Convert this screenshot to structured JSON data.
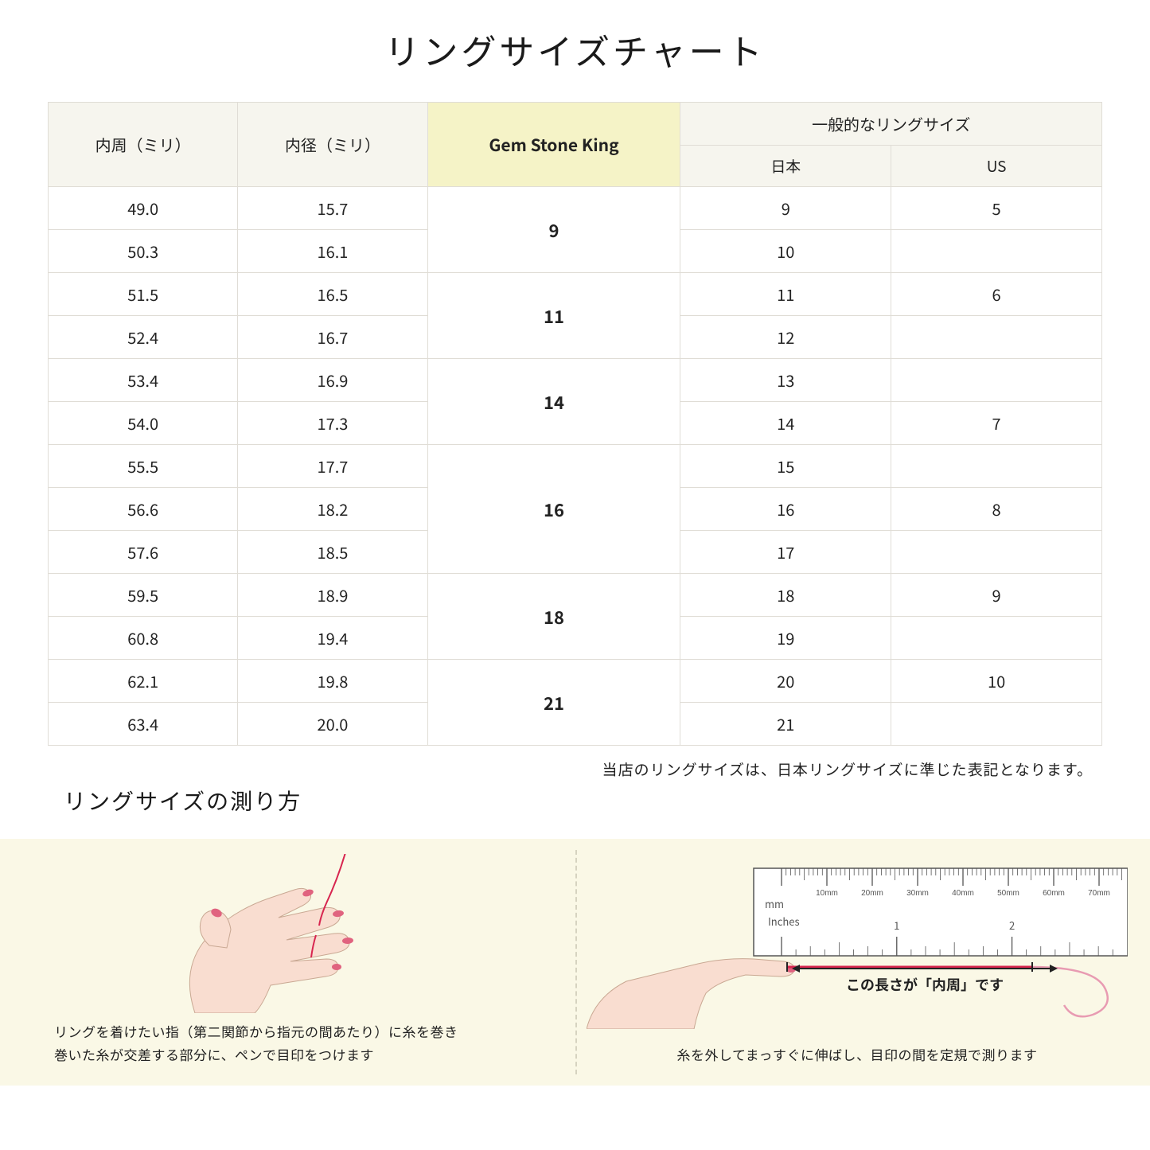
{
  "title": "リングサイズチャート",
  "table": {
    "headers": {
      "circumference": "内周（ミリ）",
      "diameter": "内径（ミリ）",
      "gsk": "Gem Stone King",
      "general": "一般的なリングサイズ",
      "japan": "日本",
      "us": "US"
    },
    "groups": [
      {
        "gsk": "9",
        "rows": [
          {
            "c": "49.0",
            "d": "15.7",
            "jp": "9",
            "us": "5"
          },
          {
            "c": "50.3",
            "d": "16.1",
            "jp": "10",
            "us": ""
          }
        ]
      },
      {
        "gsk": "11",
        "rows": [
          {
            "c": "51.5",
            "d": "16.5",
            "jp": "11",
            "us": "6"
          },
          {
            "c": "52.4",
            "d": "16.7",
            "jp": "12",
            "us": ""
          }
        ]
      },
      {
        "gsk": "14",
        "rows": [
          {
            "c": "53.4",
            "d": "16.9",
            "jp": "13",
            "us": ""
          },
          {
            "c": "54.0",
            "d": "17.3",
            "jp": "14",
            "us": "7"
          }
        ]
      },
      {
        "gsk": "16",
        "rows": [
          {
            "c": "55.5",
            "d": "17.7",
            "jp": "15",
            "us": ""
          },
          {
            "c": "56.6",
            "d": "18.2",
            "jp": "16",
            "us": "8"
          },
          {
            "c": "57.6",
            "d": "18.5",
            "jp": "17",
            "us": ""
          }
        ]
      },
      {
        "gsk": "18",
        "rows": [
          {
            "c": "59.5",
            "d": "18.9",
            "jp": "18",
            "us": "9"
          },
          {
            "c": "60.8",
            "d": "19.4",
            "jp": "19",
            "us": ""
          }
        ]
      },
      {
        "gsk": "21",
        "rows": [
          {
            "c": "62.1",
            "d": "19.8",
            "jp": "20",
            "us": "10"
          },
          {
            "c": "63.4",
            "d": "20.0",
            "jp": "21",
            "us": ""
          }
        ]
      }
    ],
    "column_widths": [
      "18%",
      "18%",
      "24%",
      "20%",
      "20%"
    ],
    "header_bg": "#f6f5ee",
    "gsk_header_bg": "#f5f3c7",
    "border_color": "#e0ddd6"
  },
  "note": "当店のリングサイズは、日本リングサイズに準じた表記となります。",
  "howto": {
    "title": "リングサイズの測り方",
    "left_text_1": "リングを着けたい指（第二関節から指元の間あたり）に糸を巻き",
    "left_text_2": "巻いた糸が交差する部分に、ペンで目印をつけます",
    "right_label": "この長さが「内周」です",
    "right_text": "糸を外してまっすぐに伸ばし、目印の間を定規で測ります",
    "ruler": {
      "mm_label": "mm",
      "in_label": "Inches",
      "mm_marks": [
        "10mm",
        "20mm",
        "30mm",
        "40mm",
        "50mm",
        "60mm",
        "70mm"
      ],
      "in_marks": [
        "1",
        "2"
      ]
    },
    "bg_color": "#faf8e6",
    "skin_color": "#f9ddd0",
    "nail_color": "#e0637f",
    "thread_color": "#d7254f"
  }
}
